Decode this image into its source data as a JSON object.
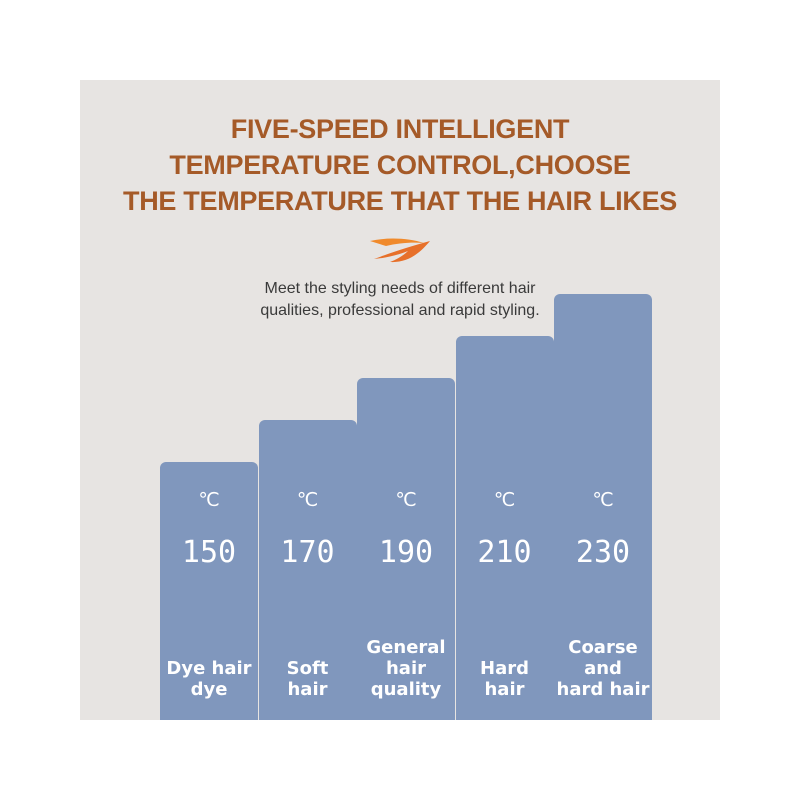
{
  "header": {
    "line1": "FIVE-SPEED INTELLIGENT",
    "line2": "TEMPERATURE CONTROL,CHOOSE",
    "line3": "THE TEMPERATURE THAT THE HAIR LIKES",
    "subtitle_line1": "Meet the styling needs of different hair",
    "subtitle_line2": "qualities, professional and rapid styling."
  },
  "colors": {
    "headline": "#a55a28",
    "bar": "#8097bd",
    "panel": "#e7e4e2",
    "logo_orange": "#f08a2c"
  },
  "logo_icon": "swoosh-logo-icon",
  "chart_data": {
    "type": "bar",
    "unit": "℃",
    "categories": [
      "Dye hair dye",
      "Soft hair",
      "General hair quality",
      "Hard hair",
      "Coarse and hard hair"
    ],
    "category_labels": [
      "Dye hair\ndye",
      "Soft\nhair",
      "General\nhair\nquality",
      "Hard\nhair",
      "Coarse\nand\nhard hair"
    ],
    "values": [
      150,
      170,
      190,
      210,
      230
    ],
    "value_labels": [
      "150",
      "170",
      "190",
      "210",
      "230"
    ],
    "grid": false,
    "legend": "none"
  }
}
